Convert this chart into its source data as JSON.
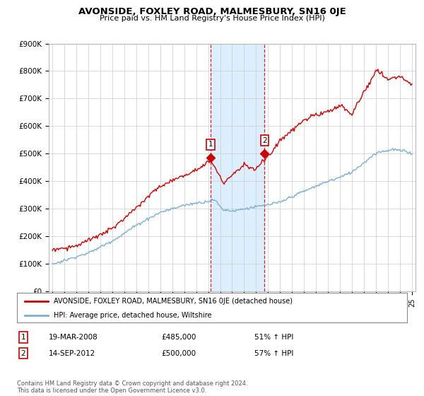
{
  "title": "AVONSIDE, FOXLEY ROAD, MALMESBURY, SN16 0JE",
  "subtitle": "Price paid vs. HM Land Registry's House Price Index (HPI)",
  "ylim": [
    0,
    900000
  ],
  "yticks": [
    0,
    100000,
    200000,
    300000,
    400000,
    500000,
    600000,
    700000,
    800000,
    900000
  ],
  "ytick_labels": [
    "£0",
    "£100K",
    "£200K",
    "£300K",
    "£400K",
    "£500K",
    "£600K",
    "£700K",
    "£800K",
    "£900K"
  ],
  "house_color": "#cc0000",
  "hpi_color": "#7bafd4",
  "shade_color": "#ddeeff",
  "vline_color": "#cc0000",
  "marker1_year": 2008.21,
  "marker1_price": 485000,
  "marker2_year": 2012.71,
  "marker2_price": 500000,
  "legend_house": "AVONSIDE, FOXLEY ROAD, MALMESBURY, SN16 0JE (detached house)",
  "legend_hpi": "HPI: Average price, detached house, Wiltshire",
  "table_rows": [
    {
      "num": "1",
      "date": "19-MAR-2008",
      "price": "£485,000",
      "hpi": "51% ↑ HPI"
    },
    {
      "num": "2",
      "date": "14-SEP-2012",
      "price": "£500,000",
      "hpi": "57% ↑ HPI"
    }
  ],
  "footnote": "Contains HM Land Registry data © Crown copyright and database right 2024.\nThis data is licensed under the Open Government Licence v3.0.",
  "background_color": "#ffffff",
  "grid_color": "#cccccc"
}
